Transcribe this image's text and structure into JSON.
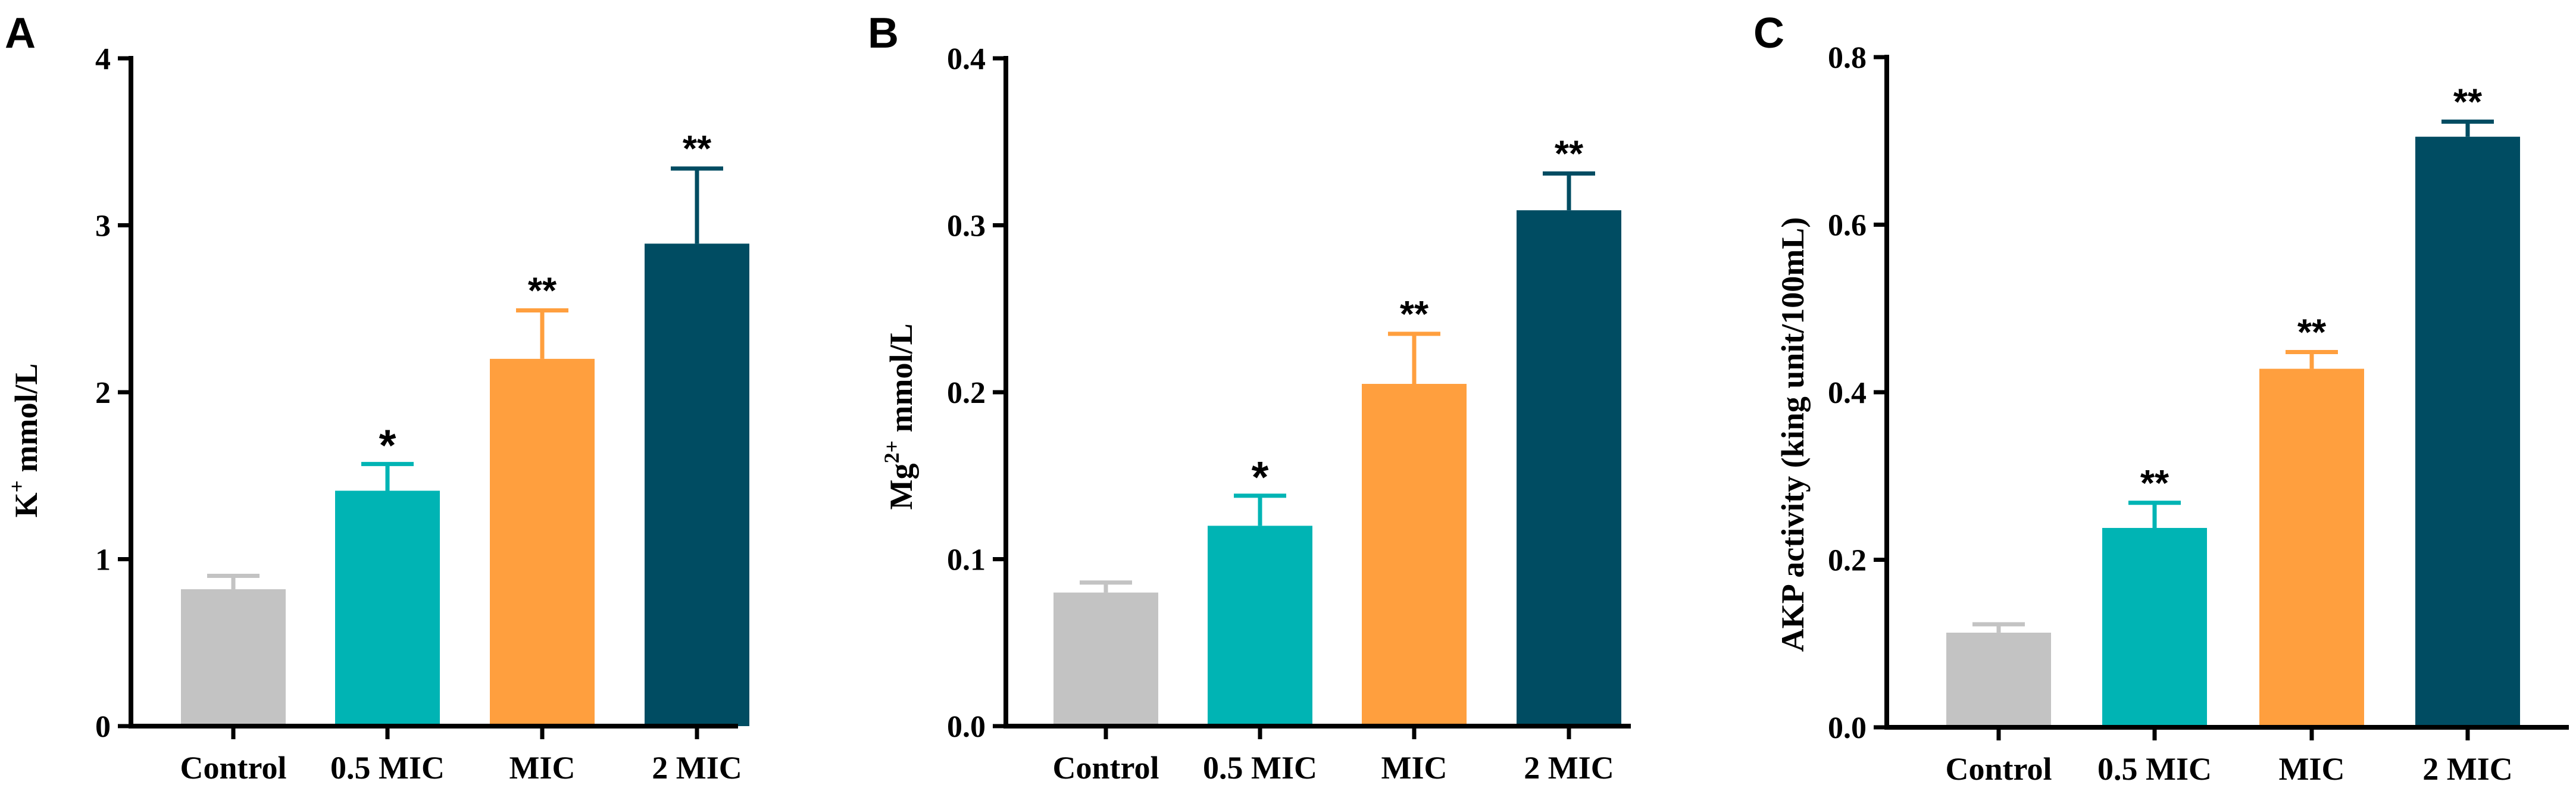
{
  "colors": [
    "#c3c3c3",
    "#00b4b4",
    "#ff9f3e",
    "#004c62"
  ],
  "chart_data": [
    {
      "type": "bar",
      "panel": "A",
      "categories": [
        "Control",
        "0.5 MIC",
        "MIC",
        "2 MIC"
      ],
      "values": [
        0.82,
        1.41,
        2.2,
        2.89
      ],
      "errors": [
        0.08,
        0.16,
        0.29,
        0.45
      ],
      "significance": [
        "",
        "*",
        "**",
        "**"
      ],
      "ylabel_main": "K",
      "ylabel_sup": "+",
      "ylabel_rest": " mmol/L",
      "ylim": [
        0,
        4
      ],
      "yticks": [
        0,
        1,
        2,
        3,
        4
      ],
      "ytick_labels": [
        "0",
        "1",
        "2",
        "3",
        "4"
      ]
    },
    {
      "type": "bar",
      "panel": "B",
      "categories": [
        "Control",
        "0.5 MIC",
        "MIC",
        "2 MIC"
      ],
      "values": [
        0.08,
        0.12,
        0.205,
        0.309
      ],
      "errors": [
        0.006,
        0.018,
        0.03,
        0.022
      ],
      "significance": [
        "",
        "*",
        "**",
        "**"
      ],
      "ylabel_main": "Mg",
      "ylabel_sup": "2+",
      "ylabel_rest": " mmol/L",
      "ylim": [
        0,
        0.4
      ],
      "yticks": [
        0,
        0.1,
        0.2,
        0.3,
        0.4
      ],
      "ytick_labels": [
        "0.0",
        "0.1",
        "0.2",
        "0.3",
        "0.4"
      ]
    },
    {
      "type": "bar",
      "panel": "C",
      "categories": [
        "Control",
        "0.5 MIC",
        "MIC",
        "2 MIC"
      ],
      "values": [
        0.113,
        0.238,
        0.428,
        0.705
      ],
      "errors": [
        0.01,
        0.03,
        0.02,
        0.018
      ],
      "significance": [
        "",
        "**",
        "**",
        "**"
      ],
      "ylabel_main": "AKP activity (king unit/100mL)",
      "ylabel_sup": "",
      "ylabel_rest": "",
      "ylim": [
        0,
        0.8
      ],
      "yticks": [
        0,
        0.2,
        0.4,
        0.6,
        0.8
      ],
      "ytick_labels": [
        "0.0",
        "0.2",
        "0.4",
        "0.6",
        "0.8"
      ]
    }
  ]
}
